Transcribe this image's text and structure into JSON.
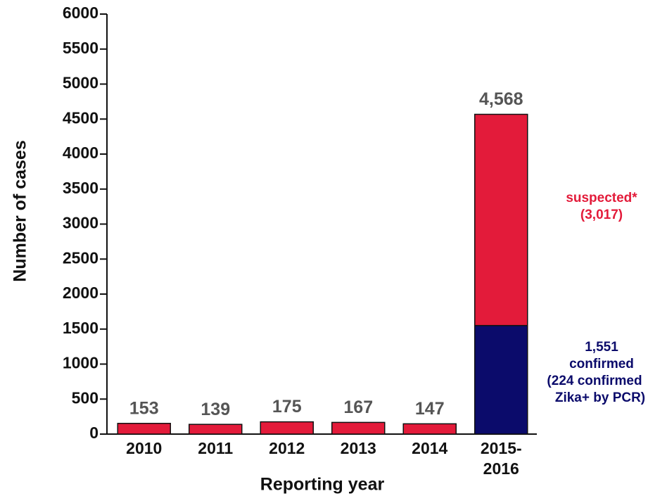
{
  "chart_data": {
    "type": "stacked_bar",
    "xlabel": "Reporting year",
    "ylabel": "Number of cases",
    "categories": [
      [
        "2010"
      ],
      [
        "2011"
      ],
      [
        "2012"
      ],
      [
        "2013"
      ],
      [
        "2014"
      ],
      [
        "2015-",
        "2016"
      ]
    ],
    "series": [
      {
        "name": "confirmed",
        "color": "#0b0b6b",
        "values": [
          null,
          null,
          null,
          null,
          null,
          1551
        ],
        "value_labels": [
          null,
          null,
          null,
          null,
          null,
          "1,551"
        ]
      },
      {
        "name": "suspected*",
        "color": "#e31b3a",
        "values": [
          153,
          139,
          175,
          167,
          147,
          3017
        ],
        "value_labels": [
          null,
          null,
          null,
          null,
          null,
          "(3,017)"
        ]
      }
    ],
    "totals": [
      153,
      139,
      175,
      167,
      147,
      4568
    ],
    "total_labels": [
      "153",
      "139",
      "175",
      "167",
      "147",
      "4,568"
    ],
    "annotation": [
      "(224 confirmed",
      "Zika+ by PCR)"
    ],
    "ylim": [
      0,
      6000
    ],
    "yticks": [
      0,
      500,
      1000,
      1500,
      2000,
      2500,
      3000,
      3500,
      4000,
      4500,
      5000,
      5500,
      6000
    ]
  }
}
